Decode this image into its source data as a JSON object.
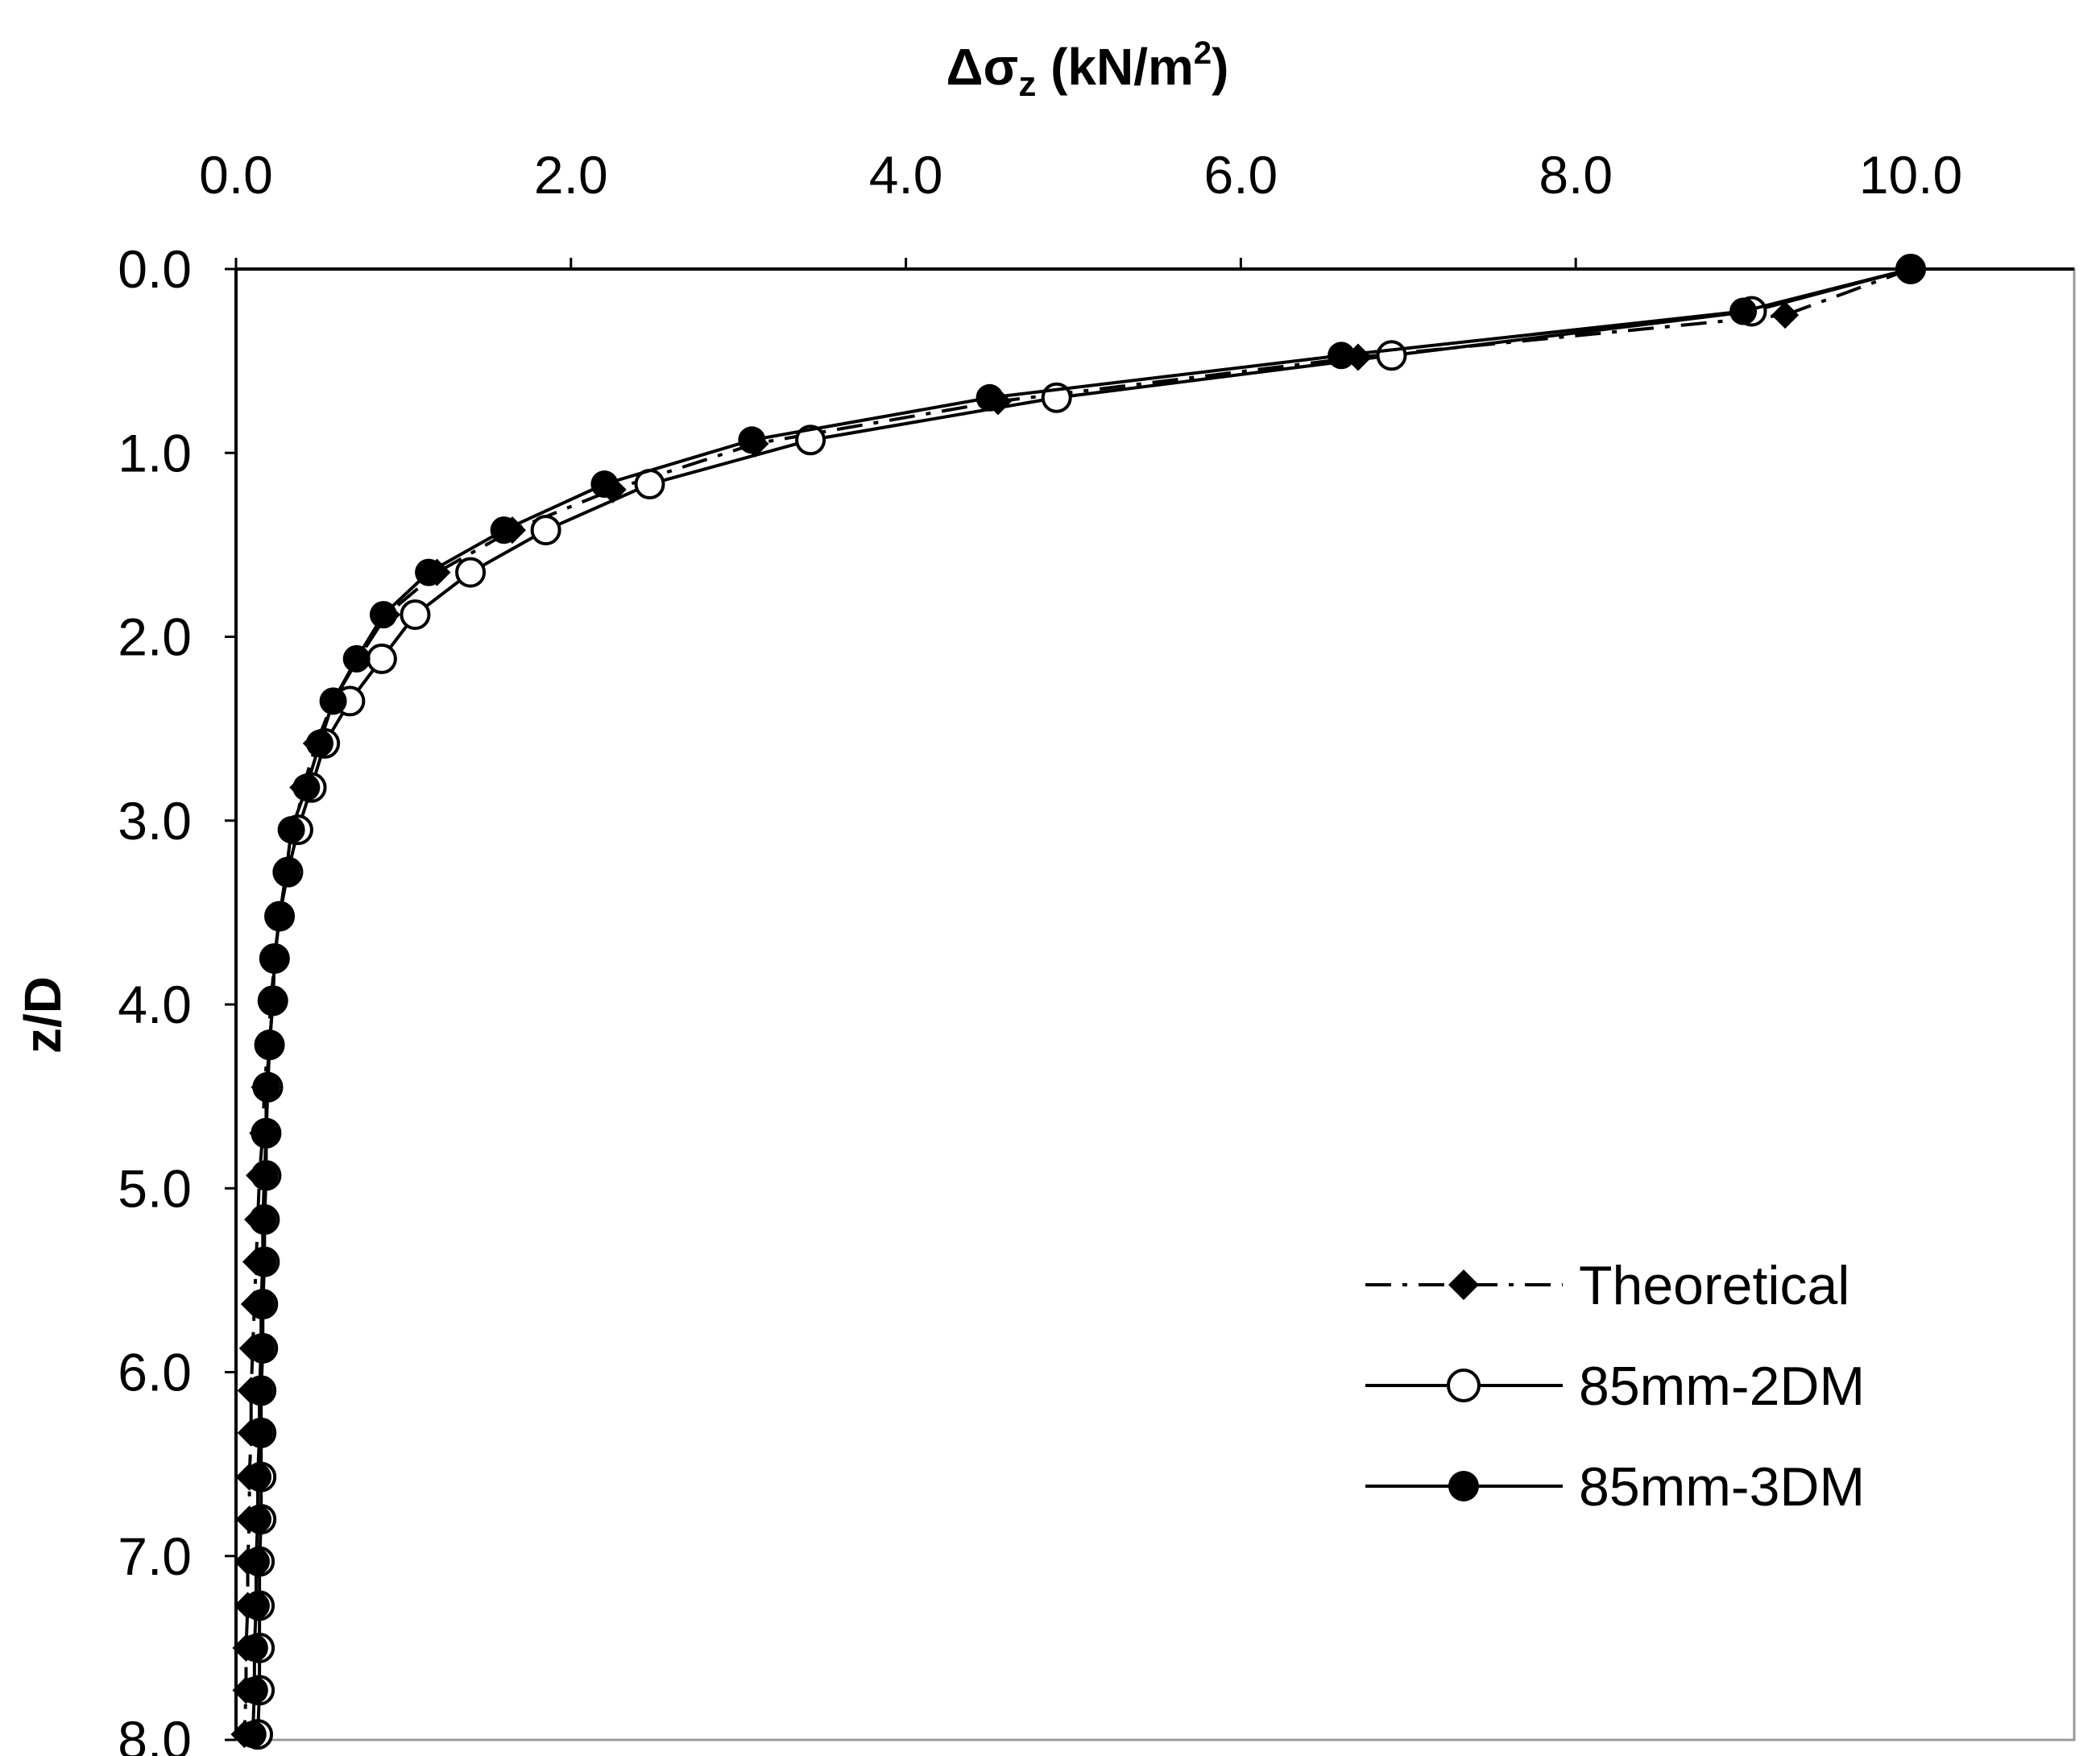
{
  "chart_data": {
    "type": "line",
    "x_title": {
      "prefix": "Δσ",
      "sub": "z",
      "unit_start": " (kN/m",
      "sup": "2",
      "unit_end": ")"
    },
    "ylabel": "z/D",
    "x_axis_position": "top",
    "y_axis_direction": "downward",
    "xlim": [
      0,
      11
    ],
    "ylim": [
      0,
      8
    ],
    "x_ticks": [
      0,
      2,
      4,
      6,
      8,
      10
    ],
    "x_tick_labels": [
      "0.0",
      "2.0",
      "4.0",
      "6.0",
      "8.0",
      "10.0"
    ],
    "y_ticks": [
      0,
      1,
      2,
      3,
      4,
      5,
      6,
      7,
      8
    ],
    "y_tick_labels": [
      "0.0",
      "1.0",
      "2.0",
      "3.0",
      "4.0",
      "5.0",
      "6.0",
      "7.0",
      "8.0"
    ],
    "grid": false,
    "legend_position": "bottom-right",
    "series": [
      {
        "name": "Theoretical",
        "line_style": "dash-dot",
        "marker": "diamond",
        "points": [
          [
            10.0,
            0.0
          ],
          [
            9.25,
            0.25
          ],
          [
            6.7,
            0.48
          ],
          [
            4.55,
            0.72
          ],
          [
            3.1,
            0.95
          ],
          [
            2.25,
            1.2
          ],
          [
            1.65,
            1.42
          ],
          [
            1.2,
            1.65
          ],
          [
            0.9,
            1.88
          ],
          [
            0.73,
            2.12
          ],
          [
            0.58,
            2.35
          ],
          [
            0.48,
            2.58
          ],
          [
            0.4,
            2.82
          ],
          [
            0.35,
            3.05
          ],
          [
            0.3,
            3.28
          ],
          [
            0.26,
            3.52
          ],
          [
            0.23,
            3.75
          ],
          [
            0.21,
            3.98
          ],
          [
            0.19,
            4.22
          ],
          [
            0.17,
            4.45
          ],
          [
            0.16,
            4.7
          ],
          [
            0.14,
            4.93
          ],
          [
            0.13,
            5.17
          ],
          [
            0.12,
            5.4
          ],
          [
            0.11,
            5.63
          ],
          [
            0.1,
            5.87
          ],
          [
            0.09,
            6.1
          ],
          [
            0.09,
            6.33
          ],
          [
            0.08,
            6.57
          ],
          [
            0.08,
            6.8
          ],
          [
            0.07,
            7.03
          ],
          [
            0.07,
            7.27
          ],
          [
            0.06,
            7.5
          ],
          [
            0.06,
            7.73
          ],
          [
            0.05,
            7.97
          ]
        ]
      },
      {
        "name": "85mm-2DM",
        "line_style": "solid",
        "marker": "open-circle",
        "points": [
          [
            10.0,
            0.0
          ],
          [
            9.05,
            0.23
          ],
          [
            6.9,
            0.47
          ],
          [
            4.9,
            0.7
          ],
          [
            3.43,
            0.93
          ],
          [
            2.47,
            1.17
          ],
          [
            1.85,
            1.42
          ],
          [
            1.4,
            1.65
          ],
          [
            1.07,
            1.88
          ],
          [
            0.87,
            2.12
          ],
          [
            0.68,
            2.35
          ],
          [
            0.53,
            2.58
          ],
          [
            0.45,
            2.82
          ],
          [
            0.37,
            3.05
          ],
          [
            0.31,
            3.28
          ],
          [
            0.26,
            3.52
          ],
          [
            0.23,
            3.75
          ],
          [
            0.22,
            3.98
          ],
          [
            0.2,
            4.22
          ],
          [
            0.19,
            4.45
          ],
          [
            0.18,
            4.7
          ],
          [
            0.18,
            4.93
          ],
          [
            0.17,
            5.17
          ],
          [
            0.17,
            5.4
          ],
          [
            0.16,
            5.63
          ],
          [
            0.16,
            5.87
          ],
          [
            0.15,
            6.1
          ],
          [
            0.15,
            6.33
          ],
          [
            0.15,
            6.57
          ],
          [
            0.15,
            6.8
          ],
          [
            0.14,
            7.03
          ],
          [
            0.14,
            7.27
          ],
          [
            0.14,
            7.5
          ],
          [
            0.14,
            7.73
          ],
          [
            0.13,
            7.97
          ]
        ]
      },
      {
        "name": "85mm-3DM",
        "line_style": "solid",
        "marker": "filled-circle",
        "points": [
          [
            10.0,
            0.0
          ],
          [
            9.0,
            0.23
          ],
          [
            6.6,
            0.47
          ],
          [
            4.5,
            0.7
          ],
          [
            3.08,
            0.93
          ],
          [
            2.2,
            1.17
          ],
          [
            1.6,
            1.42
          ],
          [
            1.15,
            1.65
          ],
          [
            0.88,
            1.88
          ],
          [
            0.72,
            2.12
          ],
          [
            0.58,
            2.35
          ],
          [
            0.5,
            2.58
          ],
          [
            0.42,
            2.82
          ],
          [
            0.33,
            3.05
          ],
          [
            0.3,
            3.28
          ],
          [
            0.26,
            3.52
          ],
          [
            0.23,
            3.75
          ],
          [
            0.22,
            3.98
          ],
          [
            0.2,
            4.22
          ],
          [
            0.18,
            4.45
          ],
          [
            0.18,
            4.7
          ],
          [
            0.17,
            4.93
          ],
          [
            0.16,
            5.17
          ],
          [
            0.16,
            5.4
          ],
          [
            0.15,
            5.63
          ],
          [
            0.15,
            5.87
          ],
          [
            0.14,
            6.1
          ],
          [
            0.14,
            6.33
          ],
          [
            0.13,
            6.57
          ],
          [
            0.13,
            6.8
          ],
          [
            0.12,
            7.03
          ],
          [
            0.12,
            7.27
          ],
          [
            0.11,
            7.5
          ],
          [
            0.11,
            7.73
          ],
          [
            0.1,
            7.97
          ]
        ]
      }
    ]
  }
}
